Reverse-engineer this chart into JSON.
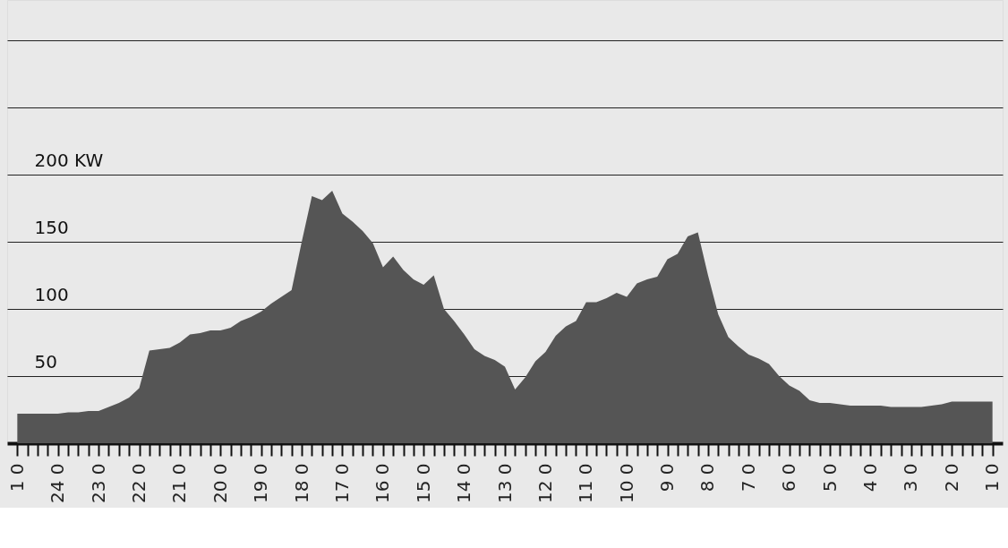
{
  "chart_data": {
    "type": "area",
    "categories": [
      "1 0",
      null,
      null,
      null,
      "24 0",
      null,
      null,
      null,
      "23 0",
      null,
      null,
      null,
      "22 0",
      null,
      null,
      null,
      "21 0",
      null,
      null,
      null,
      "20 0",
      null,
      null,
      null,
      "19 0",
      null,
      null,
      null,
      "18 0",
      null,
      null,
      null,
      "17 0",
      null,
      null,
      null,
      "16 0",
      null,
      null,
      null,
      "15 0",
      null,
      null,
      null,
      "14 0",
      null,
      null,
      null,
      "13 0",
      null,
      null,
      null,
      "12 0",
      null,
      null,
      null,
      "11 0",
      null,
      null,
      null,
      "10 0",
      null,
      null,
      null,
      "9 0",
      null,
      null,
      null,
      "8 0",
      null,
      null,
      null,
      "7 0",
      null,
      null,
      null,
      "6 0",
      null,
      null,
      null,
      "5 0",
      null,
      null,
      null,
      "4 0",
      null,
      null,
      null,
      "3 0",
      null,
      null,
      null,
      "2 0",
      null,
      null,
      null,
      "1 0"
    ],
    "series": [
      {
        "color": "#555555",
        "values": [
          22,
          22,
          22,
          22,
          22,
          23,
          23,
          24,
          24,
          27,
          30,
          34,
          41,
          69,
          70,
          71,
          75,
          81,
          82,
          84,
          84,
          86,
          91,
          94,
          98,
          104,
          109,
          114,
          150,
          184,
          181,
          188,
          171,
          165,
          158,
          149,
          131,
          139,
          129,
          122,
          118,
          125,
          100,
          91,
          81,
          70,
          65,
          62,
          57,
          40,
          49,
          61,
          68,
          80,
          87,
          91,
          105,
          105,
          108,
          112,
          109,
          119,
          122,
          124,
          137,
          141,
          154,
          157,
          125,
          96,
          79,
          72,
          66,
          63,
          59,
          50,
          43,
          39,
          32,
          30,
          30,
          29,
          28,
          28,
          28,
          28,
          27,
          27,
          27,
          27,
          28,
          29,
          31,
          31,
          31,
          31,
          31
        ]
      }
    ],
    "ylim": [
      0,
      330
    ],
    "yticks": [
      50,
      100,
      150,
      {
        "value": 200,
        "label": "200 KW"
      },
      {
        "value": 250,
        "label": null
      },
      {
        "value": 300,
        "label": null
      }
    ],
    "grid": "y"
  }
}
